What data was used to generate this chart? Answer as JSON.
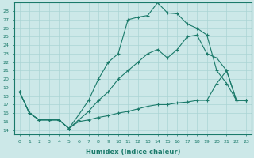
{
  "xlabel": "Humidex (Indice chaleur)",
  "background_color": "#cce8e8",
  "grid_color": "#aad4d4",
  "line_color": "#1a7a6a",
  "xlim": [
    -0.5,
    23.5
  ],
  "ylim": [
    13.5,
    29.0
  ],
  "yticks": [
    14,
    15,
    16,
    17,
    18,
    19,
    20,
    21,
    22,
    23,
    24,
    25,
    26,
    27,
    28
  ],
  "xticks": [
    0,
    1,
    2,
    3,
    4,
    5,
    6,
    7,
    8,
    9,
    10,
    11,
    12,
    13,
    14,
    15,
    16,
    17,
    18,
    19,
    20,
    21,
    22,
    23
  ],
  "line1_x": [
    0,
    1,
    2,
    3,
    4,
    5,
    6,
    7,
    8,
    9,
    10,
    11,
    12,
    13,
    14,
    15,
    16,
    17,
    18,
    19,
    20,
    21,
    22,
    23
  ],
  "line1_y": [
    18.5,
    16.0,
    15.2,
    15.2,
    15.2,
    14.2,
    15.8,
    17.5,
    20.0,
    22.0,
    23.0,
    27.0,
    27.3,
    27.5,
    29.0,
    27.8,
    27.7,
    26.5,
    26.0,
    25.2,
    21.0,
    19.5,
    17.5,
    17.5
  ],
  "line2_x": [
    0,
    1,
    2,
    3,
    4,
    5,
    6,
    7,
    8,
    9,
    10,
    11,
    12,
    13,
    14,
    15,
    16,
    17,
    18,
    19,
    20,
    21,
    22,
    23
  ],
  "line2_y": [
    18.5,
    16.0,
    15.2,
    15.2,
    15.2,
    14.2,
    15.2,
    16.2,
    17.5,
    18.5,
    20.0,
    21.0,
    22.0,
    23.0,
    23.5,
    22.5,
    23.5,
    25.0,
    25.2,
    23.0,
    22.5,
    21.0,
    17.5,
    17.5
  ],
  "line3_x": [
    0,
    1,
    2,
    3,
    4,
    5,
    6,
    7,
    8,
    9,
    10,
    11,
    12,
    13,
    14,
    15,
    16,
    17,
    18,
    19,
    20,
    21,
    22,
    23
  ],
  "line3_y": [
    18.5,
    16.0,
    15.2,
    15.2,
    15.2,
    14.2,
    15.0,
    15.2,
    15.5,
    15.7,
    16.0,
    16.2,
    16.5,
    16.8,
    17.0,
    17.0,
    17.2,
    17.3,
    17.5,
    17.5,
    19.5,
    21.0,
    17.5,
    17.5
  ]
}
